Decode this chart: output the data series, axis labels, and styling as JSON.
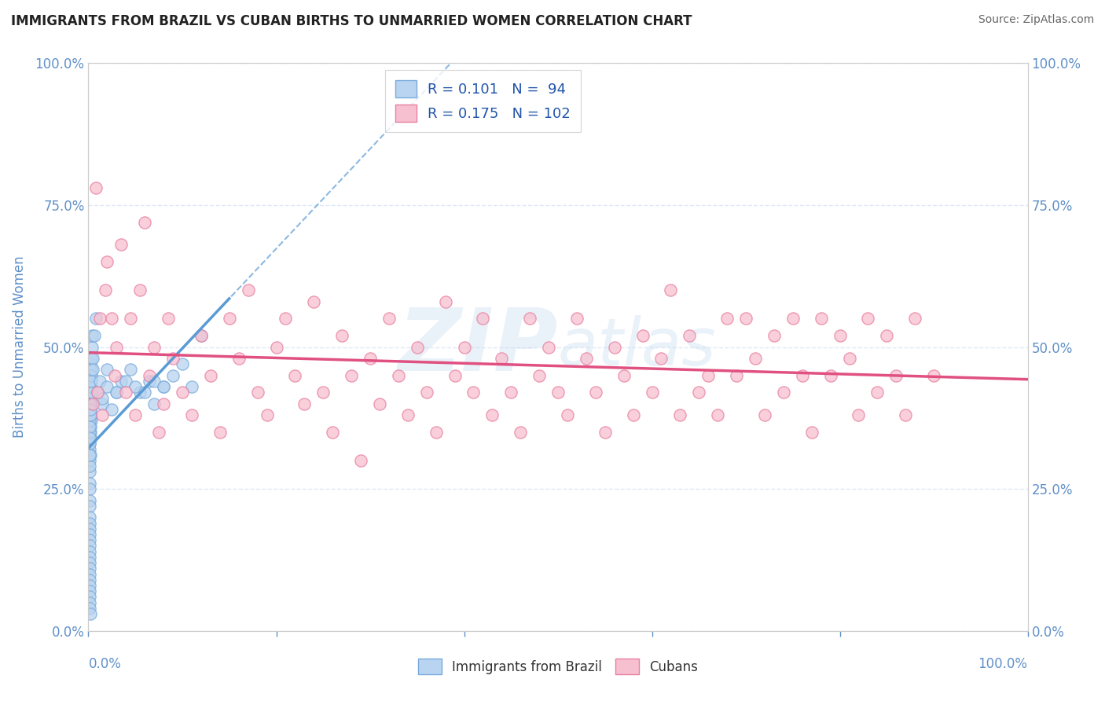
{
  "title": "IMMIGRANTS FROM BRAZIL VS CUBAN BIRTHS TO UNMARRIED WOMEN CORRELATION CHART",
  "source": "Source: ZipAtlas.com",
  "ylabel": "Births to Unmarried Women",
  "yticks": [
    0.0,
    0.25,
    0.5,
    0.75,
    1.0
  ],
  "ytick_labels": [
    "0.0%",
    "25.0%",
    "50.0%",
    "75.0%",
    "100.0%"
  ],
  "series1_label": "Immigrants from Brazil",
  "series1_face_color": "#b8d4f0",
  "series1_edge_color": "#7aabdc",
  "series1_line_color": "#5b9bd5",
  "series1_R": 0.101,
  "series1_N": 94,
  "series2_label": "Cubans",
  "series2_face_color": "#f7c0d0",
  "series2_edge_color": "#e87fa0",
  "series2_line_color": "#e05080",
  "series2_R": 0.175,
  "series2_N": 102,
  "legend_text_color": "#2255aa",
  "title_color": "#222222",
  "axis_color": "#6090c8",
  "watermark": "ZIPAtlas",
  "background_color": "#ffffff",
  "grid_color": "#d8e4f4",
  "xlim": [
    0.0,
    1.0
  ],
  "ylim": [
    0.0,
    1.0
  ],
  "brazil_x": [
    0.001,
    0.002,
    0.001,
    0.001,
    0.002,
    0.001,
    0.003,
    0.001,
    0.001,
    0.002,
    0.001,
    0.001,
    0.002,
    0.001,
    0.001,
    0.002,
    0.001,
    0.001,
    0.003,
    0.001,
    0.002,
    0.001,
    0.001,
    0.002,
    0.001,
    0.003,
    0.001,
    0.001,
    0.002,
    0.001,
    0.001,
    0.004,
    0.001,
    0.001,
    0.002,
    0.001,
    0.002,
    0.003,
    0.001,
    0.001,
    0.002,
    0.001,
    0.001,
    0.002,
    0.001,
    0.001,
    0.002,
    0.003,
    0.001,
    0.002,
    0.001,
    0.001,
    0.004,
    0.002,
    0.001,
    0.002,
    0.005,
    0.001,
    0.003,
    0.002,
    0.001,
    0.006,
    0.002,
    0.004,
    0.001,
    0.003,
    0.002,
    0.008,
    0.001,
    0.005,
    0.01,
    0.012,
    0.015,
    0.02,
    0.03,
    0.035,
    0.045,
    0.055,
    0.065,
    0.07,
    0.08,
    0.09,
    0.1,
    0.11,
    0.12,
    0.015,
    0.02,
    0.025,
    0.03,
    0.04,
    0.05,
    0.06,
    0.07,
    0.08
  ],
  "brazil_y": [
    0.36,
    0.38,
    0.4,
    0.42,
    0.35,
    0.44,
    0.37,
    0.33,
    0.3,
    0.41,
    0.32,
    0.28,
    0.43,
    0.29,
    0.26,
    0.39,
    0.25,
    0.23,
    0.45,
    0.22,
    0.47,
    0.2,
    0.19,
    0.46,
    0.18,
    0.48,
    0.17,
    0.16,
    0.34,
    0.15,
    0.14,
    0.5,
    0.13,
    0.12,
    0.38,
    0.11,
    0.36,
    0.42,
    0.1,
    0.09,
    0.4,
    0.08,
    0.07,
    0.44,
    0.06,
    0.05,
    0.31,
    0.46,
    0.04,
    0.03,
    0.35,
    0.37,
    0.52,
    0.43,
    0.38,
    0.41,
    0.48,
    0.33,
    0.45,
    0.4,
    0.36,
    0.52,
    0.38,
    0.42,
    0.34,
    0.44,
    0.39,
    0.55,
    0.31,
    0.46,
    0.42,
    0.44,
    0.4,
    0.46,
    0.42,
    0.44,
    0.46,
    0.42,
    0.44,
    0.4,
    0.43,
    0.45,
    0.47,
    0.43,
    0.52,
    0.41,
    0.43,
    0.39,
    0.42,
    0.44,
    0.43,
    0.42,
    0.44,
    0.43
  ],
  "cuban_x": [
    0.005,
    0.008,
    0.01,
    0.012,
    0.015,
    0.018,
    0.02,
    0.025,
    0.028,
    0.03,
    0.035,
    0.04,
    0.045,
    0.05,
    0.055,
    0.06,
    0.065,
    0.07,
    0.075,
    0.08,
    0.085,
    0.09,
    0.1,
    0.11,
    0.12,
    0.13,
    0.14,
    0.15,
    0.16,
    0.17,
    0.18,
    0.19,
    0.2,
    0.21,
    0.22,
    0.23,
    0.24,
    0.25,
    0.26,
    0.27,
    0.28,
    0.29,
    0.3,
    0.31,
    0.32,
    0.33,
    0.34,
    0.35,
    0.36,
    0.37,
    0.38,
    0.39,
    0.4,
    0.41,
    0.42,
    0.43,
    0.44,
    0.45,
    0.46,
    0.47,
    0.48,
    0.49,
    0.5,
    0.51,
    0.52,
    0.53,
    0.54,
    0.55,
    0.56,
    0.57,
    0.58,
    0.59,
    0.6,
    0.61,
    0.62,
    0.63,
    0.64,
    0.65,
    0.66,
    0.67,
    0.68,
    0.69,
    0.7,
    0.71,
    0.72,
    0.73,
    0.74,
    0.75,
    0.76,
    0.77,
    0.78,
    0.79,
    0.8,
    0.81,
    0.82,
    0.83,
    0.84,
    0.85,
    0.86,
    0.87,
    0.88,
    0.9
  ],
  "cuban_y": [
    0.4,
    0.78,
    0.42,
    0.55,
    0.38,
    0.6,
    0.65,
    0.55,
    0.45,
    0.5,
    0.68,
    0.42,
    0.55,
    0.38,
    0.6,
    0.72,
    0.45,
    0.5,
    0.35,
    0.4,
    0.55,
    0.48,
    0.42,
    0.38,
    0.52,
    0.45,
    0.35,
    0.55,
    0.48,
    0.6,
    0.42,
    0.38,
    0.5,
    0.55,
    0.45,
    0.4,
    0.58,
    0.42,
    0.35,
    0.52,
    0.45,
    0.3,
    0.48,
    0.4,
    0.55,
    0.45,
    0.38,
    0.5,
    0.42,
    0.35,
    0.58,
    0.45,
    0.5,
    0.42,
    0.55,
    0.38,
    0.48,
    0.42,
    0.35,
    0.55,
    0.45,
    0.5,
    0.42,
    0.38,
    0.55,
    0.48,
    0.42,
    0.35,
    0.5,
    0.45,
    0.38,
    0.52,
    0.42,
    0.48,
    0.6,
    0.38,
    0.52,
    0.42,
    0.45,
    0.38,
    0.55,
    0.45,
    0.55,
    0.48,
    0.38,
    0.52,
    0.42,
    0.55,
    0.45,
    0.35,
    0.55,
    0.45,
    0.52,
    0.48,
    0.38,
    0.55,
    0.42,
    0.52,
    0.45,
    0.38,
    0.55,
    0.45
  ]
}
